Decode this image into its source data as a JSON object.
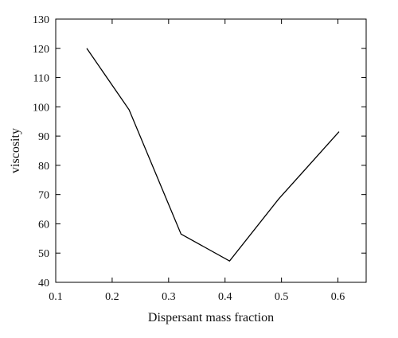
{
  "chart_data": {
    "type": "line",
    "title": "",
    "xlabel": "Dispersant mass fraction",
    "ylabel": "viscosity",
    "xlim": [
      0.1,
      0.65
    ],
    "ylim": [
      40,
      130
    ],
    "xticks": [
      0.1,
      0.2,
      0.3,
      0.4,
      0.5,
      0.6
    ],
    "xtick_labels": [
      "0.1",
      "0.2",
      "0.3",
      "0.4",
      "0.5",
      "0.6"
    ],
    "yticks": [
      40,
      50,
      60,
      70,
      80,
      90,
      100,
      110,
      120,
      130
    ],
    "ytick_labels": [
      "40",
      "50",
      "60",
      "70",
      "80",
      "90",
      "100",
      "110",
      "120",
      "130"
    ],
    "grid": false,
    "legend": "none",
    "series": [
      {
        "x": [
          0.155,
          0.23,
          0.322,
          0.408,
          0.495,
          0.602
        ],
        "y": [
          120,
          99,
          56.5,
          47.3,
          68.5,
          91.5
        ]
      }
    ],
    "colors": {
      "line": "#000000",
      "axis": "#000000"
    }
  }
}
